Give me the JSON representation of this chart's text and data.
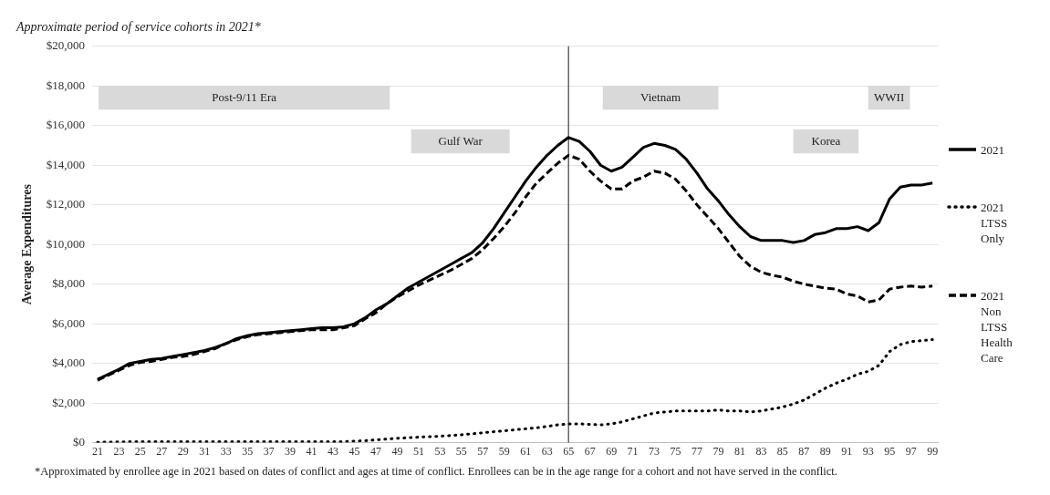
{
  "chart_data": {
    "type": "line",
    "title": "Approximate period of service cohorts in 2021*",
    "ylabel": "Average Expenditures",
    "annotations": [
      "*Approximated by enrollee age in 2021 based on dates of conflict and ages at time of conflict. Enrollees can be in the age range for a cohort and not have served in the conflict."
    ],
    "x": [
      21,
      22,
      23,
      24,
      25,
      26,
      27,
      28,
      29,
      30,
      31,
      32,
      33,
      34,
      35,
      36,
      37,
      38,
      39,
      40,
      41,
      42,
      43,
      44,
      45,
      46,
      47,
      48,
      49,
      50,
      51,
      52,
      53,
      54,
      55,
      56,
      57,
      58,
      59,
      60,
      61,
      62,
      63,
      64,
      65,
      66,
      67,
      68,
      69,
      70,
      71,
      72,
      73,
      74,
      75,
      76,
      77,
      78,
      79,
      80,
      81,
      82,
      83,
      84,
      85,
      86,
      87,
      88,
      89,
      90,
      91,
      92,
      93,
      94,
      95,
      96,
      97,
      98,
      99
    ],
    "series": [
      {
        "name": "2021",
        "color": "#000000",
        "line_style": "solid",
        "values": [
          3200,
          3450,
          3700,
          4000,
          4100,
          4200,
          4250,
          4350,
          4450,
          4550,
          4650,
          4800,
          5000,
          5250,
          5400,
          5500,
          5550,
          5600,
          5650,
          5700,
          5750,
          5800,
          5800,
          5850,
          6000,
          6300,
          6700,
          7000,
          7400,
          7800,
          8100,
          8400,
          8700,
          9000,
          9300,
          9600,
          10100,
          10800,
          11600,
          12400,
          13200,
          13900,
          14500,
          15000,
          15400,
          15200,
          14700,
          14000,
          13700,
          13900,
          14400,
          14900,
          15100,
          15000,
          14800,
          14300,
          13600,
          12800,
          12200,
          11500,
          10900,
          10400,
          10200,
          10200,
          10200,
          10100,
          10200,
          10500,
          10600,
          10800,
          10800,
          10900,
          10700,
          11100,
          12300,
          12900,
          13000,
          13000,
          13100
        ]
      },
      {
        "name": "2021 LTSS Only",
        "color": "#000000",
        "line_style": "dotted",
        "values": [
          20,
          30,
          40,
          50,
          50,
          50,
          50,
          50,
          50,
          50,
          50,
          50,
          50,
          50,
          50,
          50,
          50,
          50,
          50,
          50,
          50,
          50,
          50,
          50,
          80,
          100,
          140,
          180,
          220,
          250,
          280,
          300,
          330,
          360,
          400,
          450,
          500,
          550,
          600,
          650,
          700,
          750,
          820,
          900,
          950,
          950,
          920,
          900,
          950,
          1050,
          1200,
          1350,
          1500,
          1550,
          1600,
          1600,
          1600,
          1600,
          1650,
          1600,
          1600,
          1550,
          1600,
          1700,
          1800,
          1950,
          2150,
          2450,
          2750,
          3000,
          3200,
          3450,
          3600,
          3900,
          4600,
          4950,
          5100,
          5150,
          5200
        ]
      },
      {
        "name": "2021 Non LTSS Health Care",
        "color": "#000000",
        "line_style": "dashed",
        "values": [
          3150,
          3400,
          3650,
          3900,
          4050,
          4100,
          4200,
          4300,
          4350,
          4450,
          4600,
          4750,
          5000,
          5200,
          5350,
          5450,
          5500,
          5550,
          5600,
          5650,
          5700,
          5700,
          5700,
          5800,
          5900,
          6250,
          6550,
          7000,
          7350,
          7650,
          7950,
          8200,
          8450,
          8700,
          9000,
          9300,
          9750,
          10300,
          10900,
          11600,
          12400,
          13100,
          13600,
          14100,
          14500,
          14300,
          13700,
          13200,
          12800,
          12800,
          13200,
          13400,
          13700,
          13600,
          13300,
          12700,
          12000,
          11400,
          10800,
          10100,
          9400,
          8900,
          8600,
          8450,
          8350,
          8150,
          8000,
          7900,
          7800,
          7750,
          7500,
          7400,
          7100,
          7200,
          7750,
          7850,
          7900,
          7850,
          7900
        ]
      }
    ],
    "xlim": [
      20.5,
      99.5
    ],
    "xticks": [
      21,
      23,
      25,
      27,
      29,
      31,
      33,
      35,
      37,
      39,
      41,
      43,
      45,
      47,
      49,
      51,
      53,
      55,
      57,
      59,
      61,
      63,
      65,
      67,
      69,
      71,
      73,
      75,
      77,
      79,
      81,
      83,
      85,
      87,
      89,
      91,
      93,
      95,
      97,
      99
    ],
    "ylim": [
      0,
      20000
    ],
    "yticks": [
      {
        "value": 0,
        "label": "$0"
      },
      {
        "value": 2000,
        "label": "$2,000"
      },
      {
        "value": 4000,
        "label": "$4,000"
      },
      {
        "value": 6000,
        "label": "$6,000"
      },
      {
        "value": 8000,
        "label": "$8,000"
      },
      {
        "value": 10000,
        "label": "$10,000"
      },
      {
        "value": 12000,
        "label": "$12,000"
      },
      {
        "value": 14000,
        "label": "$14,000"
      },
      {
        "value": 16000,
        "label": "$16,000"
      },
      {
        "value": 18000,
        "label": "$18,000"
      },
      {
        "value": 20000,
        "label": "$20,000"
      }
    ],
    "grid": "y",
    "legend": "right",
    "marker": "none",
    "ref_lines": [
      {
        "axis": "x",
        "value": 65,
        "color": "#404040"
      }
    ],
    "bands": [
      {
        "axis": "x",
        "from": 21.1,
        "to": 48.3,
        "label": "Post-9/11 Era",
        "color": "#d9d9d9"
      },
      {
        "axis": "x",
        "from": 50.3,
        "to": 59.5,
        "label": "Gulf War",
        "color": "#d9d9d9"
      },
      {
        "axis": "x",
        "from": 68.2,
        "to": 79,
        "label": "Vietnam",
        "color": "#d9d9d9"
      },
      {
        "axis": "x",
        "from": 86,
        "to": 92.1,
        "label": "Korea",
        "color": "#d9d9d9"
      },
      {
        "axis": "x",
        "from": 93,
        "to": 96.9,
        "label": "WWII",
        "color": "#d9d9d9"
      }
    ]
  }
}
